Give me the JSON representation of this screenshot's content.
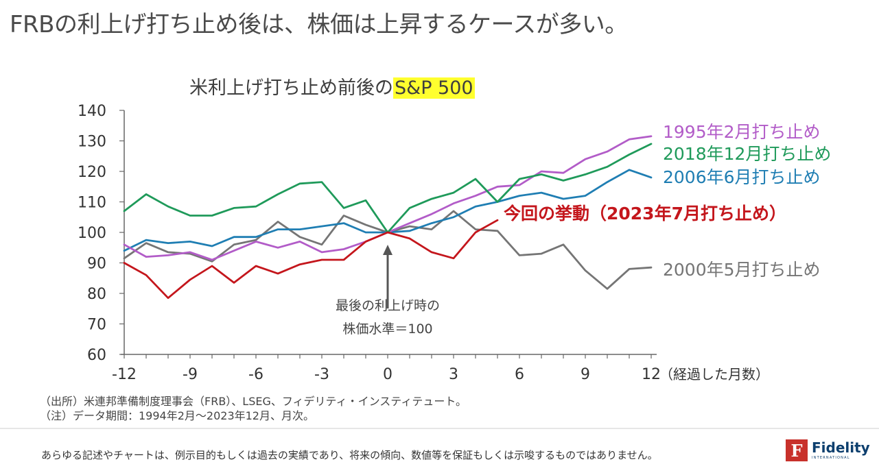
{
  "headline": "FRBの利上げ打ち止め後は、株価は上昇するケースが多い。",
  "chart_title_prefix": "米利上げ打ち止め前後の",
  "chart_title_highlight": "S&P 500",
  "annotation": {
    "line1": "最後の利上げ時の",
    "line2": "株価水準＝100"
  },
  "source_lines": [
    "（出所）米連邦準備制度理事会（FRB）、LSEG、フィデリティ・インスティテュート。",
    "（注）データ期間：1994年2月～2023年12月、月次。"
  ],
  "disclaimer": "あらゆる記述やチャートは、例示目的もしくは過去の実績であり、将来の傾向、数値等を保証もしくは示唆するものではありません。",
  "logo": {
    "mark": "F",
    "name": "Fidelity",
    "sub": "INTERNATIONAL"
  },
  "chart_data": {
    "type": "line",
    "title": "米利上げ打ち止め前後のS&P 500",
    "xlabel": "（経過した月数）",
    "ylabel": "",
    "xlim": [
      -12,
      12
    ],
    "ylim": [
      60,
      140
    ],
    "xticks": [
      -12,
      -9,
      -6,
      -3,
      0,
      3,
      6,
      9,
      12
    ],
    "yticks": [
      60,
      70,
      80,
      90,
      100,
      110,
      120,
      130,
      140
    ],
    "grid": false,
    "legend": "inline-right",
    "series": [
      {
        "name": "1995年2月打ち止め",
        "color": "#b25cc8",
        "x": [
          -12,
          -11,
          -10,
          -9,
          -8,
          -7,
          -6,
          -5,
          -4,
          -3,
          -2,
          -1,
          0,
          1,
          2,
          3,
          4,
          5,
          6,
          7,
          8,
          9,
          10,
          11,
          12
        ],
        "values": [
          96,
          92,
          92.5,
          93.5,
          91,
          94,
          97,
          95,
          97,
          93.5,
          94.5,
          97,
          100,
          103,
          106,
          109.5,
          112,
          115,
          115.5,
          120,
          119.5,
          124,
          126.5,
          130.5,
          131.5
        ]
      },
      {
        "name": "2018年12月打ち止め",
        "color": "#1f9a5a",
        "x": [
          -12,
          -11,
          -10,
          -9,
          -8,
          -7,
          -6,
          -5,
          -4,
          -3,
          -2,
          -1,
          0,
          1,
          2,
          3,
          4,
          5,
          6,
          7,
          8,
          9,
          10,
          11,
          12
        ],
        "values": [
          107,
          112.5,
          108.5,
          105.5,
          105.5,
          108,
          108.5,
          112.5,
          116,
          116.5,
          108,
          110.5,
          100,
          108,
          111,
          113,
          117.5,
          110,
          117.5,
          119,
          117,
          119,
          121.5,
          125.5,
          129
        ]
      },
      {
        "name": "2006年6月打ち止め",
        "color": "#1f7eb3",
        "x": [
          -12,
          -11,
          -10,
          -9,
          -8,
          -7,
          -6,
          -5,
          -4,
          -3,
          -2,
          -1,
          0,
          1,
          2,
          3,
          4,
          5,
          6,
          7,
          8,
          9,
          10,
          11,
          12
        ],
        "values": [
          94,
          97.5,
          96.5,
          97,
          95.5,
          98.5,
          98.5,
          101,
          101,
          102,
          103,
          100,
          100,
          100.5,
          103,
          105,
          108.5,
          110,
          112,
          113,
          111,
          112,
          116.5,
          120.5,
          118
        ]
      },
      {
        "name": "今回の挙動（2023年7月打ち止め）",
        "color": "#c4161c",
        "x": [
          -12,
          -11,
          -10,
          -9,
          -8,
          -7,
          -6,
          -5,
          -4,
          -3,
          -2,
          -1,
          0,
          1,
          2,
          3,
          4,
          5
        ],
        "values": [
          90,
          86,
          78.5,
          84.5,
          89,
          83.5,
          89,
          86.5,
          89.5,
          91,
          91,
          97,
          100,
          98,
          93.5,
          91.5,
          100,
          104
        ]
      },
      {
        "name": "2000年5月打ち止め",
        "color": "#757575",
        "x": [
          -12,
          -11,
          -10,
          -9,
          -8,
          -7,
          -6,
          -5,
          -4,
          -3,
          -2,
          -1,
          0,
          1,
          2,
          3,
          4,
          5,
          6,
          7,
          8,
          9,
          10,
          11,
          12
        ],
        "values": [
          91.5,
          96.5,
          93.5,
          93,
          90.5,
          96,
          97.5,
          103.5,
          98.5,
          96,
          105.5,
          102.5,
          100,
          102,
          101,
          107,
          101,
          100.5,
          92.5,
          93,
          96,
          87.5,
          81.5,
          88,
          88.5
        ]
      }
    ]
  }
}
